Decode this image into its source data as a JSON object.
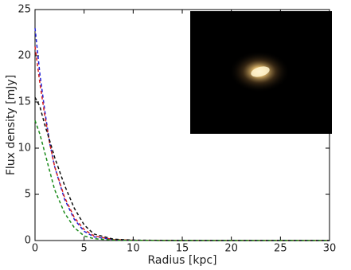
{
  "chart_data": {
    "type": "line",
    "x_label": "Radius [kpc]",
    "y_label": "Flux density [mJy]",
    "x": [
      0,
      0.5,
      1,
      1.5,
      2,
      3,
      4,
      5,
      6,
      8,
      10,
      15,
      20,
      25,
      30
    ],
    "series": [
      {
        "color": "#1f1fd6",
        "values": [
          23,
          18,
          14,
          10.5,
          8,
          4.5,
          2.3,
          1.0,
          0.4,
          0.1,
          0.03,
          0,
          0,
          0,
          0
        ]
      },
      {
        "color": "#d62020",
        "values": [
          21,
          17,
          13.5,
          10.5,
          8,
          4.7,
          2.5,
          1.2,
          0.5,
          0.1,
          0.03,
          0,
          0,
          0,
          0
        ]
      },
      {
        "color": "#111111",
        "values": [
          15.5,
          14.5,
          12.5,
          10.8,
          9,
          6,
          3.5,
          1.7,
          0.7,
          0.15,
          0.04,
          0,
          0,
          0,
          0
        ]
      },
      {
        "color": "#1a8a1a",
        "values": [
          13,
          11.5,
          9.5,
          7.5,
          5.5,
          3,
          1.4,
          0.5,
          0.2,
          0.05,
          0.01,
          0,
          0,
          0,
          0
        ]
      }
    ],
    "line_style": "dashed",
    "xlim": [
      0,
      30
    ],
    "xticks": [
      0,
      5,
      10,
      15,
      20,
      25,
      30
    ],
    "ylim": [
      0,
      25
    ],
    "yticks": [
      0,
      5,
      10,
      15,
      20,
      25
    ]
  }
}
